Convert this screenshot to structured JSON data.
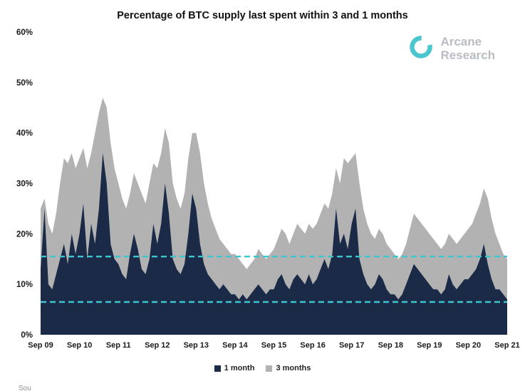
{
  "page": {
    "background": "#ffffff"
  },
  "header": {
    "brand": {
      "line1": "Arcane",
      "line2": "Research",
      "text_color": "#b9bdc1",
      "logo_color": "#4cc6ce"
    }
  },
  "footer": {
    "partial_text": "Sou"
  },
  "chart_data": {
    "type": "area",
    "title": "Percentage of BTC supply last spent within 3 and 1 months",
    "xlabel": "",
    "ylabel": "",
    "ylim": [
      0,
      60
    ],
    "grid": false,
    "legend_position": "bottom",
    "x_tick_labels": [
      "Sep 09",
      "Sep 10",
      "Sep 11",
      "Sep 12",
      "Sep 13",
      "Sep 14",
      "Sep 15",
      "Sep 16",
      "Sep 17",
      "Sep 18",
      "Sep 19",
      "Sep 20",
      "Sep 21"
    ],
    "y_tick_labels": [
      "0%",
      "10%",
      "20%",
      "30%",
      "40%",
      "50%",
      "60%"
    ],
    "y_tick_values": [
      0,
      10,
      20,
      30,
      40,
      50,
      60
    ],
    "reference_lines": [
      {
        "y": 15.5,
        "color": "#3cc6d0",
        "style": "dashed"
      },
      {
        "y": 6.5,
        "color": "#3cc6d0",
        "style": "dashed"
      }
    ],
    "series": [
      {
        "name": "1 month",
        "color": "#1b2a47",
        "values": [
          13,
          25,
          10,
          9,
          12,
          15,
          18,
          14,
          20,
          16,
          20,
          26,
          15,
          22,
          18,
          25,
          36,
          30,
          18,
          15,
          14,
          12,
          11,
          16,
          20,
          17,
          13,
          12,
          15,
          22,
          18,
          22,
          30,
          24,
          15,
          13,
          12,
          14,
          20,
          28,
          25,
          18,
          14,
          12,
          11,
          10,
          9,
          10,
          9,
          8,
          8,
          7,
          8,
          7,
          8,
          9,
          10,
          9,
          8,
          9,
          9,
          11,
          12,
          10,
          9,
          11,
          12,
          11,
          10,
          12,
          10,
          11,
          13,
          15,
          13,
          16,
          25,
          18,
          20,
          17,
          22,
          25,
          15,
          12,
          10,
          9,
          10,
          12,
          11,
          9,
          8,
          8,
          7,
          8,
          10,
          12,
          14,
          13,
          12,
          11,
          10,
          9,
          9,
          8,
          9,
          12,
          10,
          9,
          10,
          11,
          11,
          12,
          13,
          15,
          18,
          14,
          11,
          9,
          9,
          8,
          7
        ]
      },
      {
        "name": "3 months",
        "color": "#b2b2b2",
        "values": [
          25,
          27,
          22,
          20,
          24,
          30,
          35,
          34,
          36,
          33,
          35,
          37,
          33,
          36,
          40,
          44,
          47,
          45,
          38,
          33,
          30,
          27,
          25,
          28,
          32,
          30,
          28,
          26,
          30,
          34,
          33,
          36,
          41,
          38,
          30,
          27,
          25,
          28,
          35,
          40,
          40,
          36,
          30,
          26,
          23,
          21,
          19,
          18,
          17,
          16,
          16,
          15,
          14,
          13,
          14,
          15,
          17,
          16,
          15,
          16,
          17,
          19,
          21,
          20,
          18,
          20,
          22,
          21,
          20,
          22,
          21,
          22,
          24,
          26,
          25,
          28,
          33,
          30,
          35,
          34,
          35,
          36,
          30,
          25,
          22,
          20,
          19,
          21,
          20,
          18,
          17,
          16,
          15,
          16,
          18,
          21,
          24,
          23,
          22,
          21,
          20,
          19,
          18,
          17,
          18,
          20,
          19,
          18,
          19,
          20,
          21,
          22,
          24,
          26,
          29,
          27,
          23,
          20,
          18,
          16,
          15
        ]
      }
    ]
  }
}
